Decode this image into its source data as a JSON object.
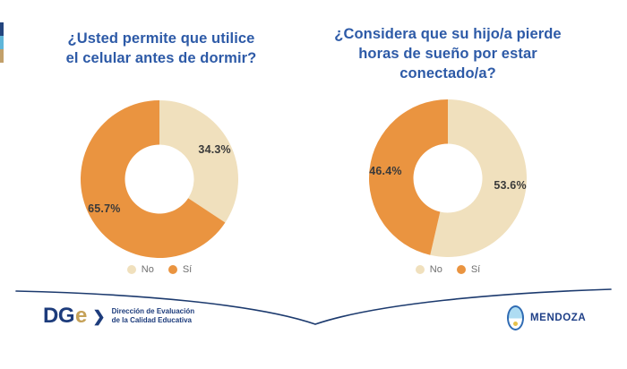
{
  "page": {
    "background": "#ffffff"
  },
  "ribbon": {
    "colors": [
      "#23457e",
      "#5fb6d9",
      "#c2a06a"
    ]
  },
  "chart_data": [
    {
      "type": "pie",
      "subtype": "donut",
      "title": "¿Usted permite que utilice el celular antes de dormir?",
      "title_display": "¿Usted permite que utilice\nel celular antes de dormir?",
      "labels": [
        "No",
        "Sí"
      ],
      "label_slugs": [
        "no",
        "si"
      ],
      "values": [
        34.3,
        65.7
      ],
      "value_labels": [
        "34.3%",
        "65.7%"
      ],
      "colors": [
        "#f0e0bd",
        "#ea9440"
      ],
      "start_angle_deg": 0,
      "direction": "clockwise",
      "legend_position": "bottom",
      "label_text_color": "#3a3a3a"
    },
    {
      "type": "pie",
      "subtype": "donut",
      "title": "¿Considera que su hijo/a pierde horas de sueño por estar conectado/a?",
      "title_display": "¿Considera que su hijo/a pierde\nhoras de sueño por estar\nconectado/a?",
      "labels": [
        "No",
        "Sí"
      ],
      "label_slugs": [
        "no",
        "si"
      ],
      "values": [
        53.6,
        46.4
      ],
      "value_labels": [
        "53.6%",
        "46.4%"
      ],
      "colors": [
        "#f0e0bd",
        "#ea9440"
      ],
      "start_angle_deg": 0,
      "direction": "clockwise",
      "legend_position": "bottom",
      "label_text_color": "#3a3a3a"
    }
  ],
  "footer": {
    "dge": {
      "wordmark_dg": "DG",
      "wordmark_e": "e",
      "chevron": "❯",
      "caption": "Dirección de Evaluación\nde la Calidad Educativa"
    },
    "mendoza": {
      "label": "MENDOZA"
    },
    "curve_color": "#1c3a6e"
  }
}
